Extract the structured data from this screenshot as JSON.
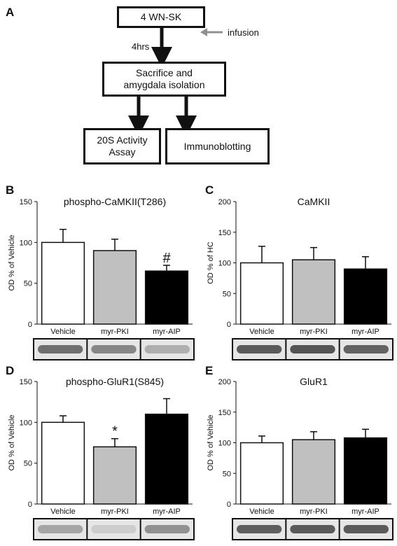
{
  "panel_labels": {
    "a": "A",
    "b": "B",
    "c": "C",
    "d": "D",
    "e": "E"
  },
  "flow": {
    "start": "4 WN-SK",
    "infusion": "infusion",
    "time": "4hrs",
    "sacrifice_line1": "Sacrifice and",
    "sacrifice_line2": "amygdala isolation",
    "assay_line1": "20S Activity",
    "assay_line2": "Assay",
    "immunoblot": "Immunoblotting"
  },
  "colors": {
    "vehicle": "#ffffff",
    "myr_pki": "#c0c0c0",
    "myr_aip": "#000000"
  },
  "chart_data": [
    {
      "type": "bar",
      "panel": "B",
      "title": "phospho-CaMKII(T286)",
      "ylabel": "OD % of Vehicle",
      "ylim": [
        0,
        150
      ],
      "yticks": [
        0,
        50,
        100,
        150
      ],
      "categories": [
        "Vehicle",
        "myr-PKI",
        "myr-AIP"
      ],
      "values": [
        100,
        90,
        65
      ],
      "errors": [
        16,
        14,
        7
      ],
      "annotations": [
        "",
        "",
        "#"
      ],
      "blot": [
        0.62,
        0.5,
        0.3
      ]
    },
    {
      "type": "bar",
      "panel": "C",
      "title": "CaMKII",
      "ylabel": "OD % of HC",
      "ylim": [
        0,
        200
      ],
      "yticks": [
        0,
        50,
        100,
        150,
        200
      ],
      "categories": [
        "Vehicle",
        "myr-PKI",
        "myr-AIP"
      ],
      "values": [
        100,
        105,
        90
      ],
      "errors": [
        27,
        20,
        20
      ],
      "annotations": [
        "",
        "",
        ""
      ],
      "blot": [
        0.72,
        0.75,
        0.68
      ]
    },
    {
      "type": "bar",
      "panel": "D",
      "title": "phospho-GluR1(S845)",
      "ylabel": "OD % of Vehicle",
      "ylim": [
        0,
        150
      ],
      "yticks": [
        0,
        50,
        100,
        150
      ],
      "categories": [
        "Vehicle",
        "myr-PKI",
        "myr-AIP"
      ],
      "values": [
        100,
        70,
        110
      ],
      "errors": [
        8,
        10,
        19
      ],
      "annotations": [
        "",
        "*",
        ""
      ],
      "blot": [
        0.35,
        0.15,
        0.45
      ]
    },
    {
      "type": "bar",
      "panel": "E",
      "title": "GluR1",
      "ylabel": "OD % of Vehicle",
      "ylim": [
        0,
        200
      ],
      "yticks": [
        0,
        50,
        100,
        150,
        200
      ],
      "categories": [
        "Vehicle",
        "myr-PKI",
        "myr-AIP"
      ],
      "values": [
        100,
        105,
        108
      ],
      "errors": [
        11,
        13,
        14
      ],
      "annotations": [
        "",
        "",
        ""
      ],
      "blot": [
        0.7,
        0.72,
        0.72
      ]
    }
  ]
}
